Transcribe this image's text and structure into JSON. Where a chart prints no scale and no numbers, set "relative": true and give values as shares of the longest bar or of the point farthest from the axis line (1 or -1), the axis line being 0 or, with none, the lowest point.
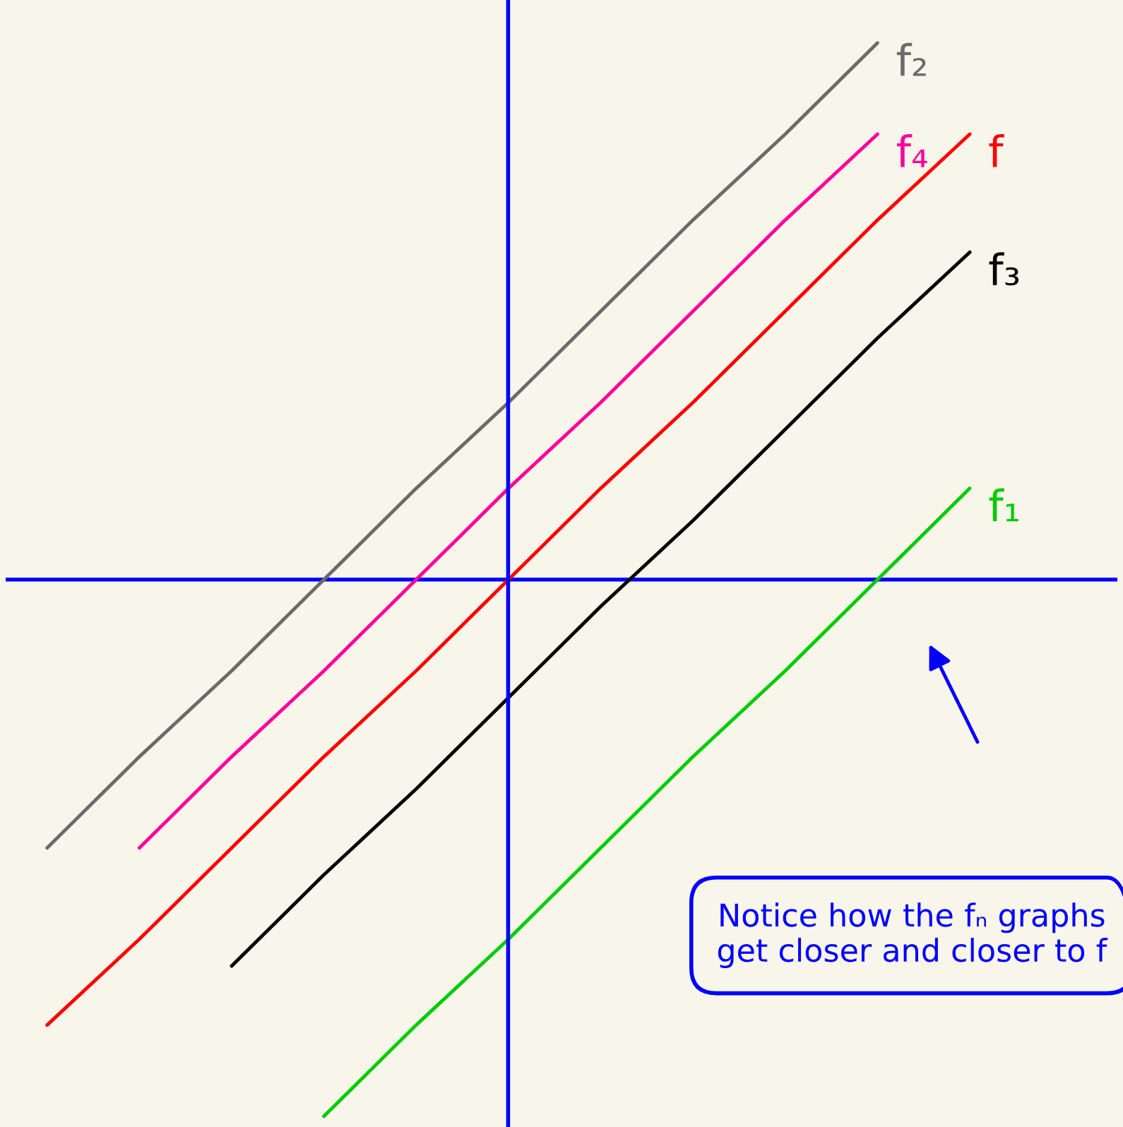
{
  "chart_data": {
    "type": "line",
    "relative": true,
    "categories": [
      null,
      null,
      null,
      null,
      null,
      null,
      null,
      null,
      null,
      null,
      null,
      null
    ],
    "series": [
      {
        "name": "f₂",
        "color": "#6b6b6b",
        "values": [
          -0.5,
          -0.33,
          -0.17,
          0,
          0.17,
          0.33,
          0.5,
          0.67,
          0.83,
          1.0,
          null,
          null
        ]
      },
      {
        "name": "f₄",
        "color": "#ff0099",
        "values": [
          null,
          -0.5,
          -0.33,
          -0.17,
          0,
          0.17,
          0.33,
          0.5,
          0.67,
          0.83,
          null,
          null
        ]
      },
      {
        "name": "f",
        "color": "#ff0000",
        "values": [
          -0.83,
          -0.67,
          -0.5,
          -0.33,
          -0.17,
          0,
          0.17,
          0.33,
          0.5,
          0.67,
          0.83,
          null
        ]
      },
      {
        "name": "f₃",
        "color": "#000000",
        "values": [
          null,
          null,
          -0.72,
          -0.55,
          -0.39,
          -0.22,
          -0.05,
          0.11,
          0.28,
          0.45,
          0.61,
          null
        ]
      },
      {
        "name": "f₁",
        "color": "#00cc00",
        "values": [
          null,
          null,
          null,
          -1,
          -0.83,
          -0.67,
          -0.5,
          -0.33,
          -0.17,
          0,
          0.17,
          null
        ]
      }
    ],
    "ref_lines": [
      {
        "axis": "y",
        "value": 0,
        "color": "#0000ff"
      }
    ],
    "annotations": [
      "Notice how the fₙ graphs get closer and closer to f"
    ],
    "grid": false,
    "legend": false,
    "marker": "none",
    "line_style": "solid"
  }
}
